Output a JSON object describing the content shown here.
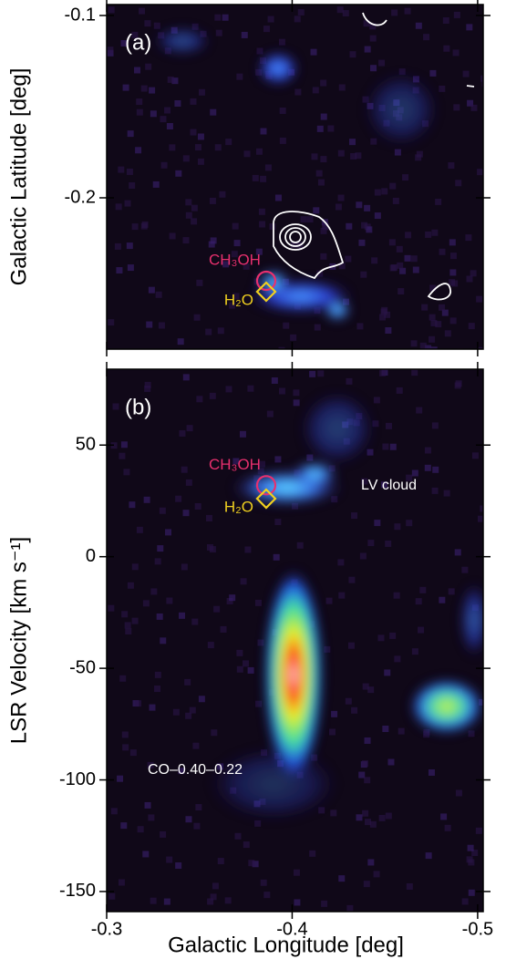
{
  "chart_data": [
    {
      "type": "image",
      "title": "(a)",
      "ylabel": "Galactic Latitude [deg]",
      "xlim": [
        -0.3,
        -0.503
      ],
      "ylim": [
        -0.283,
        -0.094
      ],
      "xticks": [
        -0.3,
        -0.4,
        -0.5
      ],
      "yticks": [
        -0.1,
        -0.2
      ],
      "points": [
        {
          "name": "CH₃OH",
          "x": -0.386,
          "y": -0.2455,
          "color": "#e8306e",
          "marker": "circle"
        },
        {
          "name": "H₂O",
          "x": -0.386,
          "y": -0.2515,
          "color": "#f0d020",
          "marker": "diamond"
        }
      ],
      "annotations": []
    },
    {
      "type": "image",
      "title": "(b)",
      "xlabel": "Galactic Longitude [deg]",
      "ylabel": "LSR Velocity [km s⁻¹]",
      "xlim": [
        -0.3,
        -0.503
      ],
      "ylim": [
        -159,
        84
      ],
      "xticks": [
        -0.3,
        -0.4,
        -0.5
      ],
      "yticks": [
        50,
        0,
        -50,
        -100,
        -150
      ],
      "points": [
        {
          "name": "CH₃OH",
          "x": -0.386,
          "y": 32,
          "color": "#e8306e",
          "marker": "circle"
        },
        {
          "name": "H₂O",
          "x": -0.386,
          "y": 26,
          "color": "#f0d020",
          "marker": "diamond"
        }
      ],
      "annotations": [
        "LV cloud",
        "CO–0.40–0.22"
      ]
    }
  ]
}
